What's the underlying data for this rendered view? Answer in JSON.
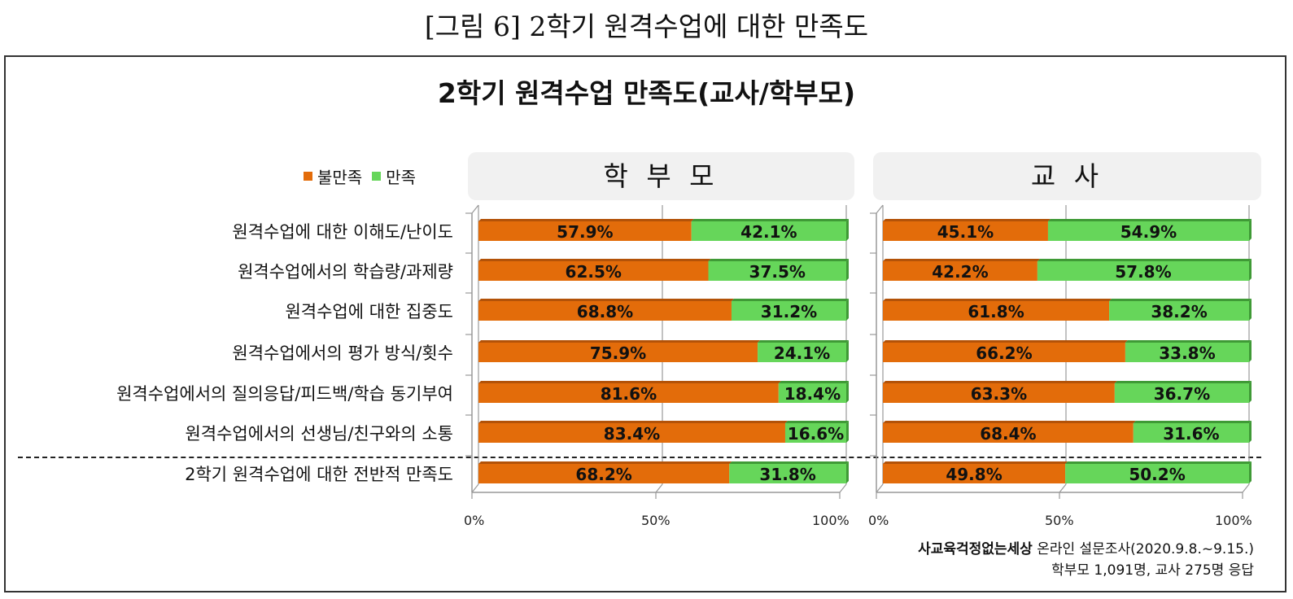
{
  "caption": "[그림 6] 2학기 원격수업에 대한 만족도",
  "chart_data": {
    "type": "bar",
    "stacked": true,
    "orientation": "horizontal",
    "title": "2학기 원격수업 만족도(교사/학부모)",
    "legend": [
      {
        "name": "불만족",
        "color": "#e36c0a"
      },
      {
        "name": "만족",
        "color": "#66d65a"
      }
    ],
    "legend_placement": "top-left",
    "categories": [
      "원격수업에 대한 이해도/난이도",
      "원격수업에서의 학습량/과제량",
      "원격수업에 대한 집중도",
      "원격수업에서의 평가 방식/횟수",
      "원격수업에서의 질의응답/피드백/학습 동기부여",
      "원격수업에서의 선생님/친구와의 소통",
      "2학기 원격수업에 대한 전반적 만족도"
    ],
    "xlim": [
      0,
      100
    ],
    "xticks": [
      "0%",
      "50%",
      "100%"
    ],
    "panels": [
      {
        "name": "학 부 모",
        "series": [
          {
            "name": "불만족",
            "values": [
              57.9,
              62.5,
              68.8,
              75.9,
              81.6,
              83.4,
              68.2
            ]
          },
          {
            "name": "만족",
            "values": [
              42.1,
              37.5,
              31.2,
              24.1,
              18.4,
              16.6,
              31.8
            ]
          }
        ]
      },
      {
        "name": "교 사",
        "series": [
          {
            "name": "불만족",
            "values": [
              45.1,
              42.2,
              61.8,
              66.2,
              63.3,
              68.4,
              49.8
            ]
          },
          {
            "name": "만족",
            "values": [
              54.9,
              57.8,
              38.2,
              33.8,
              36.7,
              31.6,
              50.2
            ]
          }
        ]
      }
    ]
  },
  "source": {
    "org": "사교육걱정없는세상",
    "survey": " 온라인 설문조사(2020.9.8.~9.15.)",
    "respondents": "학부모 1,091명, 교사 275명 응답"
  }
}
